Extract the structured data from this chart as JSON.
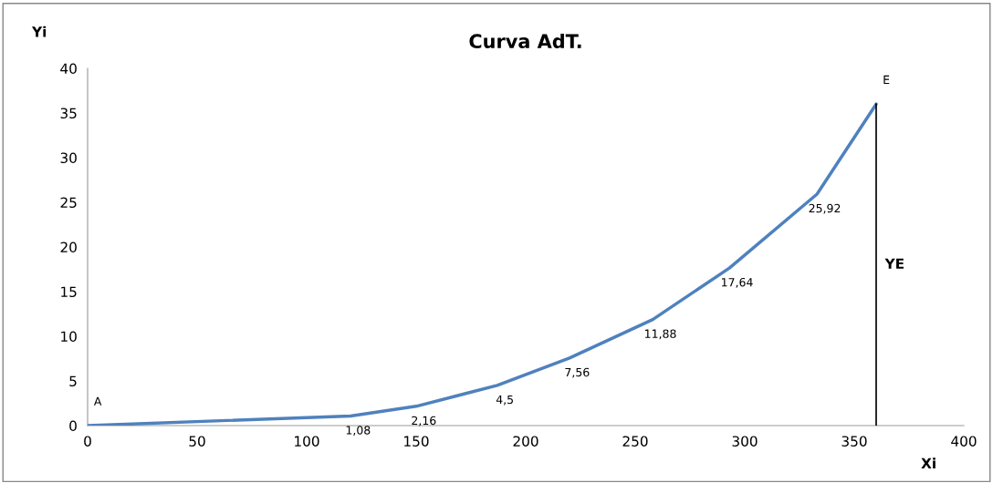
{
  "chart_data": {
    "type": "line",
    "title": "Curva AdT.",
    "xlabel": "Xi",
    "ylabel": "Yi",
    "xlim": [
      0,
      400
    ],
    "xticks": [
      0,
      50,
      100,
      150,
      200,
      250,
      300,
      350,
      400
    ],
    "ylim": [
      0,
      40
    ],
    "yticks": [
      0,
      5,
      10,
      15,
      20,
      25,
      30,
      35,
      40
    ],
    "grid": false,
    "legend": false,
    "marker": "none",
    "line_style": "solid",
    "series": [
      {
        "color": "#4f81bd",
        "x": [
          0,
          120,
          150,
          187,
          220,
          258,
          293,
          333,
          360
        ],
        "values": [
          0,
          1.08,
          2.16,
          4.5,
          7.56,
          11.88,
          17.64,
          25.92,
          36
        ],
        "value_labels": [
          null,
          "1,08",
          "2,16",
          "4,5",
          "7,56",
          "11,88",
          "17,64",
          "25,92",
          null
        ]
      },
      {
        "name": "YE",
        "color": "#000000",
        "x": [
          360,
          360
        ],
        "values": [
          0,
          36
        ]
      }
    ],
    "annotations": [
      {
        "text": "A",
        "x": 0,
        "y": 0
      },
      {
        "text": "E",
        "x": 360,
        "y": 36
      }
    ]
  }
}
